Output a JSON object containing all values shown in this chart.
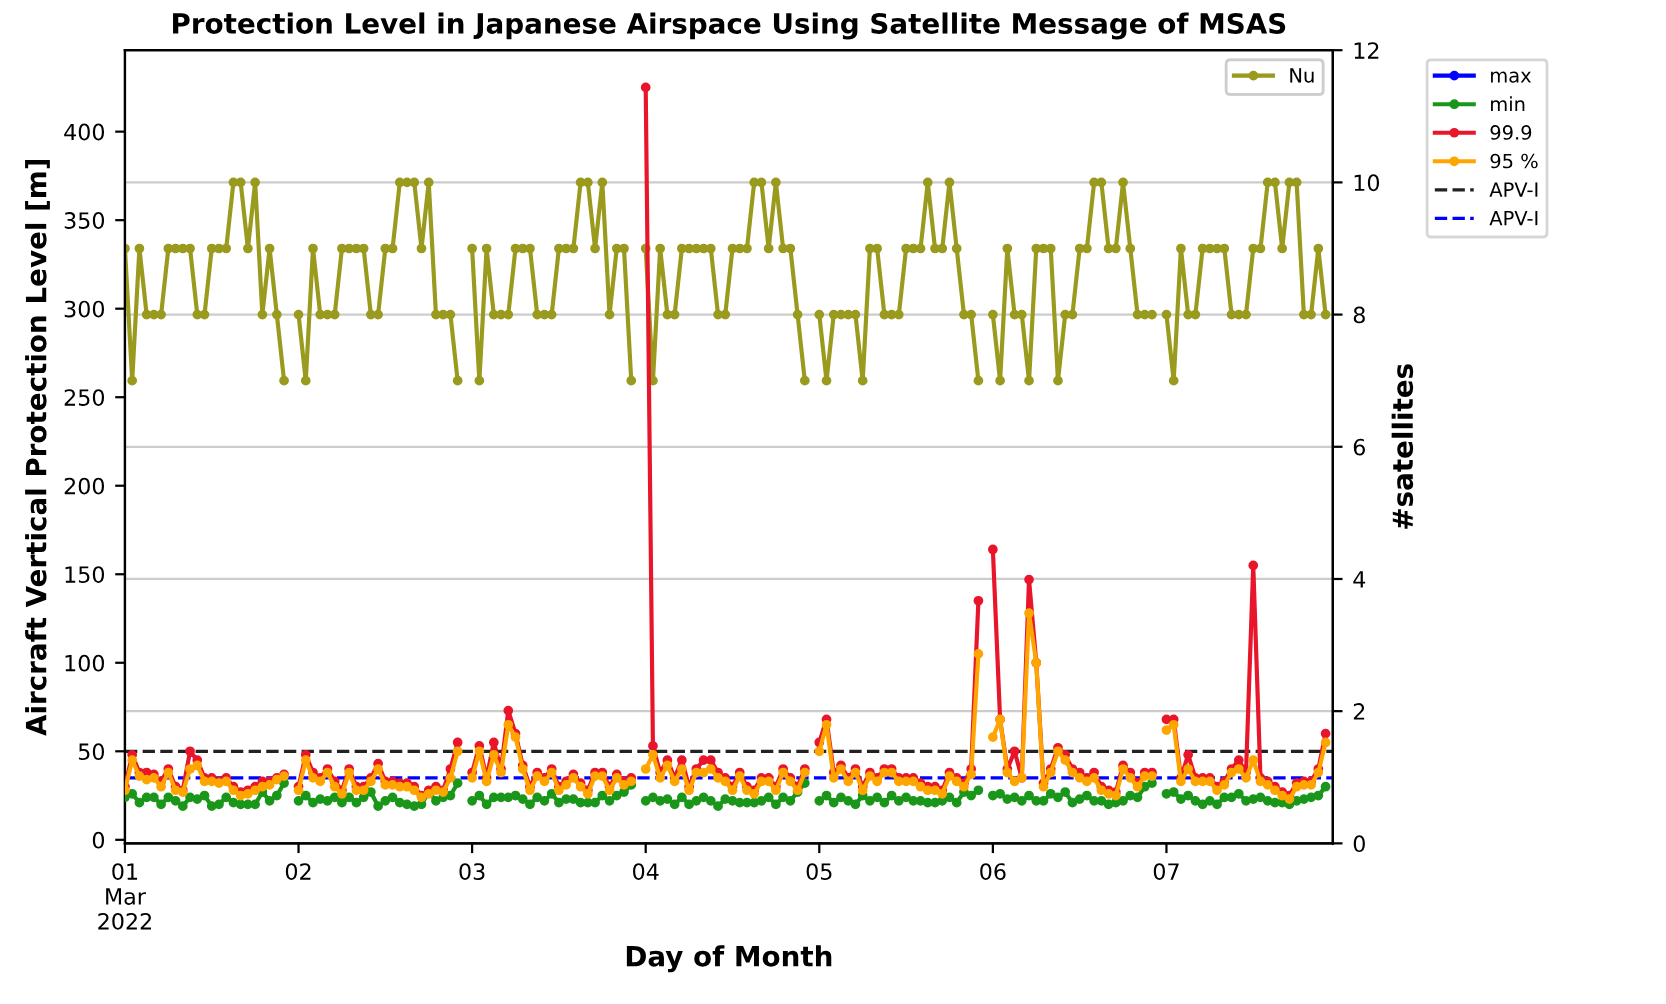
{
  "chart_data": {
    "type": "line",
    "title": "Protection Level in Japanese Airspace Using Satellite Message of MSAS",
    "xlabel": "Day of Month",
    "ylabel": "Aircraft Vertical Protection Level [m]",
    "y2label": "#satellites",
    "x": [
      "2022-03-01T00:00",
      "2022-03-01T01:00",
      "2022-03-01T02:00",
      "2022-03-01T03:00",
      "2022-03-01T04:00",
      "2022-03-01T05:00",
      "2022-03-01T06:00",
      "2022-03-01T07:00",
      "2022-03-01T08:00",
      "2022-03-01T09:00",
      "2022-03-01T10:00",
      "2022-03-01T11:00",
      "2022-03-01T12:00",
      "2022-03-01T13:00",
      "2022-03-01T14:00",
      "2022-03-01T15:00",
      "2022-03-01T16:00",
      "2022-03-01T17:00",
      "2022-03-01T18:00",
      "2022-03-01T19:00",
      "2022-03-01T20:00",
      "2022-03-01T21:00",
      "2022-03-01T22:00",
      "2022-03-01T23:00",
      "2022-03-02T00:00",
      "2022-03-02T01:00",
      "2022-03-02T02:00",
      "2022-03-02T03:00",
      "2022-03-02T04:00",
      "2022-03-02T05:00",
      "2022-03-02T06:00",
      "2022-03-02T07:00",
      "2022-03-02T08:00",
      "2022-03-02T09:00",
      "2022-03-02T10:00",
      "2022-03-02T11:00",
      "2022-03-02T12:00",
      "2022-03-02T13:00",
      "2022-03-02T14:00",
      "2022-03-02T15:00",
      "2022-03-02T16:00",
      "2022-03-02T17:00",
      "2022-03-02T18:00",
      "2022-03-02T19:00",
      "2022-03-02T20:00",
      "2022-03-02T21:00",
      "2022-03-02T22:00",
      "2022-03-02T23:00",
      "2022-03-03T00:00",
      "2022-03-03T01:00",
      "2022-03-03T02:00",
      "2022-03-03T03:00",
      "2022-03-03T04:00",
      "2022-03-03T05:00",
      "2022-03-03T06:00",
      "2022-03-03T07:00",
      "2022-03-03T08:00",
      "2022-03-03T09:00",
      "2022-03-03T10:00",
      "2022-03-03T11:00",
      "2022-03-03T12:00",
      "2022-03-03T13:00",
      "2022-03-03T14:00",
      "2022-03-03T15:00",
      "2022-03-03T16:00",
      "2022-03-03T17:00",
      "2022-03-03T18:00",
      "2022-03-03T19:00",
      "2022-03-03T20:00",
      "2022-03-03T21:00",
      "2022-03-03T22:00",
      "2022-03-03T23:00",
      "2022-03-04T00:00",
      "2022-03-04T01:00",
      "2022-03-04T02:00",
      "2022-03-04T03:00",
      "2022-03-04T04:00",
      "2022-03-04T05:00",
      "2022-03-04T06:00",
      "2022-03-04T07:00",
      "2022-03-04T08:00",
      "2022-03-04T09:00",
      "2022-03-04T10:00",
      "2022-03-04T11:00",
      "2022-03-04T12:00",
      "2022-03-04T13:00",
      "2022-03-04T14:00",
      "2022-03-04T15:00",
      "2022-03-04T16:00",
      "2022-03-04T17:00",
      "2022-03-04T18:00",
      "2022-03-04T19:00",
      "2022-03-04T20:00",
      "2022-03-04T21:00",
      "2022-03-04T22:00",
      "2022-03-04T23:00",
      "2022-03-05T00:00",
      "2022-03-05T01:00",
      "2022-03-05T02:00",
      "2022-03-05T03:00",
      "2022-03-05T04:00",
      "2022-03-05T05:00",
      "2022-03-05T06:00",
      "2022-03-05T07:00",
      "2022-03-05T08:00",
      "2022-03-05T09:00",
      "2022-03-05T10:00",
      "2022-03-05T11:00",
      "2022-03-05T12:00",
      "2022-03-05T13:00",
      "2022-03-05T14:00",
      "2022-03-05T15:00",
      "2022-03-05T16:00",
      "2022-03-05T17:00",
      "2022-03-05T18:00",
      "2022-03-05T19:00",
      "2022-03-05T20:00",
      "2022-03-05T21:00",
      "2022-03-05T22:00",
      "2022-03-05T23:00",
      "2022-03-06T00:00",
      "2022-03-06T01:00",
      "2022-03-06T02:00",
      "2022-03-06T03:00",
      "2022-03-06T04:00",
      "2022-03-06T05:00",
      "2022-03-06T06:00",
      "2022-03-06T07:00",
      "2022-03-06T08:00",
      "2022-03-06T09:00",
      "2022-03-06T10:00",
      "2022-03-06T11:00",
      "2022-03-06T12:00",
      "2022-03-06T13:00",
      "2022-03-06T14:00",
      "2022-03-06T15:00",
      "2022-03-06T16:00",
      "2022-03-06T17:00",
      "2022-03-06T18:00",
      "2022-03-06T19:00",
      "2022-03-06T20:00",
      "2022-03-06T21:00",
      "2022-03-06T22:00",
      "2022-03-06T23:00",
      "2022-03-07T00:00",
      "2022-03-07T01:00",
      "2022-03-07T02:00",
      "2022-03-07T03:00",
      "2022-03-07T04:00",
      "2022-03-07T05:00",
      "2022-03-07T06:00",
      "2022-03-07T07:00",
      "2022-03-07T08:00",
      "2022-03-07T09:00",
      "2022-03-07T10:00",
      "2022-03-07T11:00",
      "2022-03-07T12:00",
      "2022-03-07T13:00",
      "2022-03-07T14:00",
      "2022-03-07T15:00",
      "2022-03-07T16:00",
      "2022-03-07T17:00",
      "2022-03-07T18:00",
      "2022-03-07T19:00",
      "2022-03-07T20:00",
      "2022-03-07T21:00",
      "2022-03-07T22:00"
    ],
    "series": [
      {
        "name": "Nu",
        "color": "#9a9a1f",
        "axis": "y2",
        "values": [
          9,
          7,
          9,
          8,
          8,
          8,
          9,
          9,
          9,
          9,
          8,
          8,
          9,
          9,
          9,
          10,
          10,
          9,
          10,
          8,
          9,
          8,
          7,
          null,
          8,
          7,
          9,
          8,
          8,
          8,
          9,
          9,
          9,
          9,
          8,
          8,
          9,
          9,
          10,
          10,
          10,
          9,
          10,
          8,
          8,
          8,
          7,
          null,
          9,
          7,
          9,
          8,
          8,
          8,
          9,
          9,
          9,
          8,
          8,
          8,
          9,
          9,
          9,
          10,
          10,
          9,
          10,
          8,
          9,
          9,
          7,
          null,
          9,
          7,
          9,
          8,
          8,
          9,
          9,
          9,
          9,
          9,
          8,
          8,
          9,
          9,
          9,
          10,
          10,
          9,
          10,
          9,
          9,
          8,
          7,
          null,
          8,
          7,
          8,
          8,
          8,
          8,
          7,
          9,
          9,
          8,
          8,
          8,
          9,
          9,
          9,
          10,
          9,
          9,
          10,
          9,
          8,
          8,
          7,
          null,
          8,
          7,
          9,
          8,
          8,
          7,
          9,
          9,
          9,
          7,
          8,
          8,
          9,
          9,
          10,
          10,
          9,
          9,
          10,
          9,
          8,
          8,
          8,
          null,
          8,
          7,
          9,
          8,
          8,
          9,
          9,
          9,
          9,
          8,
          8,
          8,
          9,
          9,
          10,
          10,
          9,
          10,
          10,
          8,
          8,
          9,
          8
        ]
      },
      {
        "name": "max",
        "color": "#0000ff",
        "values": [
          null,
          null,
          null,
          null,
          null,
          null,
          null,
          null,
          null,
          null,
          null,
          null,
          null,
          null,
          null,
          null,
          null,
          null,
          null,
          null,
          null,
          null,
          null,
          null,
          null,
          null,
          null,
          null,
          null,
          null,
          null,
          null,
          null,
          null,
          null,
          null,
          null,
          null,
          null,
          null,
          null,
          null,
          null,
          null,
          null,
          null,
          null,
          null,
          null,
          null,
          null,
          null,
          null,
          null,
          null,
          null,
          null,
          null,
          null,
          null,
          null,
          null,
          null,
          null,
          null,
          null,
          null,
          null,
          null,
          null,
          null,
          null,
          null,
          null,
          null,
          null,
          null,
          null,
          null,
          null,
          null,
          null,
          null,
          null,
          null,
          null,
          null,
          null,
          null,
          null,
          null,
          null,
          null,
          null,
          null,
          null,
          null,
          null,
          null,
          null,
          null,
          null,
          null,
          null,
          null,
          null,
          null,
          null,
          null,
          null,
          null,
          null,
          null,
          null,
          null,
          null,
          null,
          null,
          null,
          null,
          null,
          null,
          null,
          null,
          null,
          null,
          null,
          null,
          null,
          null,
          null,
          null,
          null,
          null,
          null,
          null,
          null,
          null,
          null,
          null,
          null,
          null,
          null,
          null,
          null,
          null,
          null,
          null,
          null,
          null,
          null,
          null,
          null,
          null,
          null,
          null,
          null,
          null,
          null,
          null,
          null,
          null,
          null,
          null,
          null,
          null,
          null
        ]
      },
      {
        "name": "min",
        "color": "#1a961a",
        "values": [
          24,
          26,
          21,
          24,
          24,
          20,
          24,
          22,
          19,
          24,
          23,
          25,
          19,
          20,
          24,
          21,
          20,
          20,
          20,
          27,
          22,
          25,
          32,
          null,
          22,
          25,
          21,
          23,
          22,
          24,
          21,
          24,
          21,
          24,
          27,
          19,
          22,
          24,
          21,
          20,
          19,
          20,
          27,
          22,
          24,
          25,
          32,
          null,
          22,
          25,
          20,
          24,
          24,
          24,
          25,
          23,
          20,
          24,
          22,
          26,
          21,
          23,
          23,
          21,
          21,
          21,
          25,
          22,
          25,
          27,
          31,
          null,
          22,
          24,
          22,
          23,
          20,
          24,
          20,
          22,
          24,
          22,
          19,
          23,
          22,
          21,
          21,
          21,
          22,
          24,
          20,
          24,
          22,
          27,
          32,
          null,
          22,
          25,
          21,
          24,
          22,
          20,
          25,
          22,
          24,
          21,
          25,
          22,
          24,
          22,
          22,
          21,
          21,
          22,
          24,
          21,
          27,
          25,
          28,
          null,
          25,
          26,
          23,
          24,
          22,
          25,
          22,
          22,
          26,
          24,
          27,
          21,
          23,
          25,
          22,
          22,
          20,
          21,
          22,
          25,
          24,
          30,
          32,
          null,
          26,
          27,
          23,
          25,
          22,
          20,
          22,
          20,
          24,
          24,
          26,
          22,
          23,
          24,
          22,
          21,
          21,
          20,
          22,
          23,
          24,
          25,
          30
        ]
      },
      {
        "name": "99.9",
        "color": "#e8152b",
        "values": [
          30,
          48,
          38,
          38,
          37,
          33,
          40,
          30,
          28,
          50,
          45,
          35,
          35,
          33,
          35,
          30,
          27,
          28,
          30,
          33,
          33,
          35,
          37,
          null,
          30,
          48,
          38,
          35,
          40,
          33,
          28,
          40,
          30,
          30,
          35,
          43,
          33,
          33,
          32,
          32,
          30,
          25,
          28,
          30,
          28,
          40,
          55,
          null,
          38,
          53,
          35,
          55,
          40,
          73,
          60,
          42,
          30,
          38,
          35,
          40,
          30,
          33,
          37,
          32,
          28,
          38,
          38,
          30,
          37,
          33,
          35,
          null,
          425,
          53,
          38,
          45,
          35,
          45,
          30,
          40,
          45,
          45,
          38,
          35,
          30,
          38,
          30,
          28,
          35,
          35,
          30,
          40,
          35,
          30,
          40,
          null,
          55,
          68,
          38,
          42,
          35,
          40,
          30,
          38,
          35,
          40,
          40,
          35,
          35,
          35,
          32,
          30,
          30,
          28,
          38,
          35,
          32,
          40,
          135,
          null,
          164,
          68,
          40,
          50,
          35,
          147,
          100,
          32,
          40,
          52,
          48,
          40,
          38,
          35,
          38,
          30,
          28,
          27,
          42,
          38,
          32,
          38,
          38,
          null,
          68,
          68,
          35,
          48,
          35,
          35,
          35,
          30,
          33,
          40,
          45,
          38,
          155,
          35,
          33,
          30,
          27,
          25,
          32,
          33,
          33,
          40,
          60
        ]
      },
      {
        "name": "95 %",
        "color": "#ffa500",
        "values": [
          28,
          45,
          36,
          34,
          35,
          30,
          38,
          28,
          27,
          40,
          42,
          33,
          33,
          32,
          33,
          28,
          25,
          26,
          28,
          30,
          31,
          34,
          36,
          null,
          28,
          45,
          35,
          33,
          38,
          30,
          26,
          38,
          28,
          28,
          33,
          40,
          31,
          31,
          30,
          30,
          28,
          24,
          26,
          28,
          27,
          35,
          50,
          null,
          35,
          50,
          33,
          48,
          38,
          65,
          58,
          40,
          28,
          36,
          33,
          38,
          28,
          31,
          35,
          30,
          26,
          36,
          36,
          28,
          35,
          31,
          33,
          null,
          40,
          48,
          35,
          42,
          33,
          40,
          28,
          38,
          38,
          40,
          35,
          33,
          28,
          36,
          28,
          26,
          33,
          33,
          28,
          38,
          33,
          28,
          38,
          null,
          50,
          65,
          35,
          40,
          33,
          38,
          28,
          36,
          33,
          38,
          38,
          33,
          33,
          33,
          30,
          28,
          28,
          26,
          36,
          33,
          30,
          37,
          105,
          null,
          58,
          68,
          38,
          33,
          35,
          128,
          100,
          30,
          38,
          50,
          45,
          38,
          35,
          33,
          35,
          28,
          26,
          25,
          40,
          35,
          30,
          36,
          36,
          null,
          62,
          65,
          33,
          40,
          33,
          33,
          33,
          28,
          31,
          38,
          40,
          35,
          45,
          33,
          31,
          28,
          25,
          23,
          30,
          31,
          31,
          38,
          55
        ]
      }
    ],
    "ref_lines": [
      {
        "axis": "y",
        "value": 50,
        "label": "APV-I",
        "color": "#222222",
        "line_style": "dashed"
      },
      {
        "axis": "y",
        "value": 35,
        "label": "APV-I",
        "color": "#0000ff",
        "line_style": "dashed"
      }
    ],
    "xlim": [
      "2022-03-01T00:00",
      "2022-03-07T23:00"
    ],
    "xticks": [
      {
        "value": "2022-03-01",
        "label": "01\nMar\n2022"
      },
      {
        "value": "2022-03-02",
        "label": "02"
      },
      {
        "value": "2022-03-03",
        "label": "03"
      },
      {
        "value": "2022-03-04",
        "label": "04"
      },
      {
        "value": "2022-03-05",
        "label": "05"
      },
      {
        "value": "2022-03-06",
        "label": "06"
      },
      {
        "value": "2022-03-07",
        "label": "07"
      }
    ],
    "ylim": [
      -2,
      446
    ],
    "yticks": [
      0,
      50,
      100,
      150,
      200,
      250,
      300,
      350,
      400
    ],
    "y2lim": [
      0,
      12
    ],
    "y2ticks": [
      0,
      2,
      4,
      6,
      8,
      10,
      12
    ],
    "grid": "y2",
    "legend": "top right",
    "marker": "circle",
    "line_style": "solid"
  }
}
